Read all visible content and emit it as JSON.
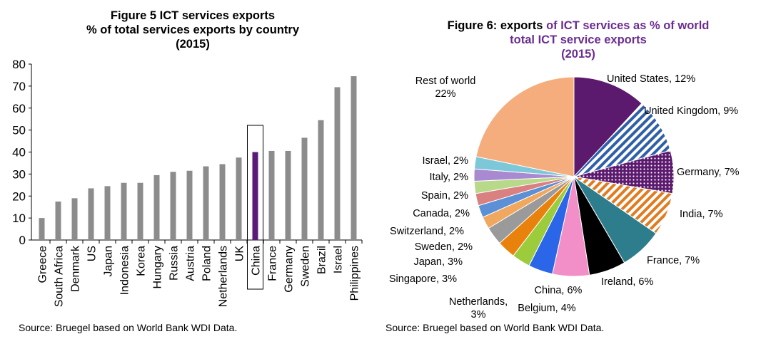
{
  "chart_data": [
    {
      "type": "bar",
      "title_line1": "Figure 5 ICT services exports",
      "title_line2": "% of total services exports by country",
      "title_line3": "(2015)",
      "categories": [
        "Greece",
        "South Africa",
        "Denmark",
        "US",
        "Japan",
        "Indonesia",
        "Korea",
        "Hungary",
        "Russia",
        "Austria",
        "Poland",
        "Netherlands",
        "UK",
        "China",
        "France",
        "Germany",
        "Sweden",
        "Brazil",
        "Israel",
        "Philippines"
      ],
      "values": [
        10,
        17.5,
        19,
        23.5,
        24.5,
        26,
        26,
        29.5,
        31,
        31.5,
        33.5,
        34.5,
        37.5,
        40,
        40.5,
        40.5,
        46.5,
        54.5,
        69.5,
        74.5
      ],
      "ylim": [
        0,
        80
      ],
      "yticks": [
        "0",
        "10",
        "20",
        "30",
        "40",
        "50",
        "60",
        "70",
        "80"
      ],
      "highlight": "China",
      "colors": {
        "bar": "#8c8c8c",
        "highlight": "#5b1a7a"
      },
      "source": "Source: Bruegel based on World Bank WDI Data."
    },
    {
      "type": "pie",
      "title_part1": "Figure 6: exports ",
      "title_part2": "of ICT services as % of world",
      "title_line2": "total ICT service exports",
      "title_line3": "(2015)",
      "slices": [
        {
          "label": "United States, 12%",
          "value": 12,
          "color": "#5b1a6e"
        },
        {
          "label": "United Kingdom, 9%",
          "value": 9,
          "color": "#2f5fa8",
          "pattern": "stripes"
        },
        {
          "label": "Germany, 7%",
          "value": 7,
          "color": "#5b1a6e",
          "pattern": "dots"
        },
        {
          "label": "India, 7%",
          "value": 7,
          "color": "#e07b20",
          "pattern": "stripes"
        },
        {
          "label": "France, 7%",
          "value": 7,
          "color": "#2e7d8c"
        },
        {
          "label": "Ireland, 6%",
          "value": 6,
          "color": "#000000"
        },
        {
          "label": "China, 6%",
          "value": 6,
          "color": "#f28ec8"
        },
        {
          "label": "Belgium, 4%",
          "value": 4,
          "color": "#2b66e8"
        },
        {
          "label": "Netherlands, 3%",
          "value": 3,
          "color": "#9ccc3c"
        },
        {
          "label": "Singapore, 3%",
          "value": 3,
          "color": "#e8820c"
        },
        {
          "label": "Japan, 3%",
          "value": 3,
          "color": "#9a9a9a"
        },
        {
          "label": "Sweden, 2%",
          "value": 2,
          "color": "#f0a860"
        },
        {
          "label": "Switzerland, 2%",
          "value": 2,
          "color": "#5b8fd6"
        },
        {
          "label": "Canada, 2%",
          "value": 2,
          "color": "#d98080"
        },
        {
          "label": "Spain, 2%",
          "value": 2,
          "color": "#b8d88a"
        },
        {
          "label": "Italy, 2%",
          "value": 2,
          "color": "#a98ad0"
        },
        {
          "label": "Israel, 2%",
          "value": 2,
          "color": "#7cc8d8"
        },
        {
          "label": "Rest of world 22%",
          "value": 22,
          "color": "#f6ad7d"
        }
      ],
      "source": "Source: Bruegel based on World Bank WDI Data."
    }
  ]
}
